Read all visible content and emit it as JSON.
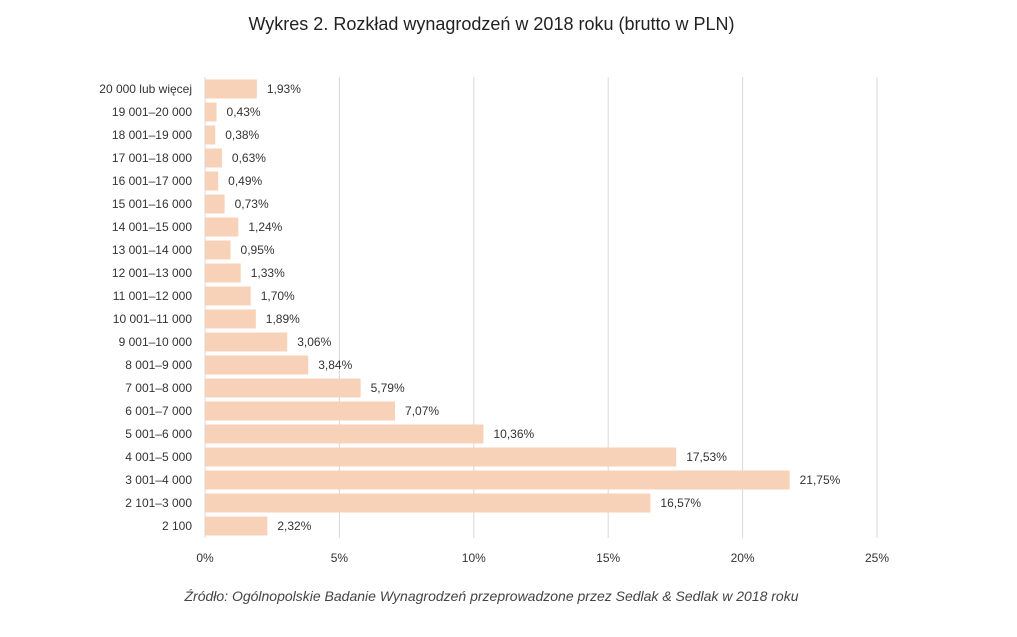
{
  "colors": {
    "bar": "#f8d2b8",
    "grid": "#d9d9d9",
    "text": "#333333",
    "background": "#ffffff"
  },
  "chart_data": {
    "type": "bar",
    "orientation": "horizontal",
    "title": "Wykres 2. Rozkład wynagrodzeń w 2018 roku (brutto w PLN)",
    "source": "Źródło: Ogólnopolskie Badanie Wynagrodzeń przeprowadzone przez Sedlak & Sedlak w 2018 roku",
    "categories": [
      "20 000 lub więcej",
      "19 001–20 000",
      "18 001–19 000",
      "17 001–18 000",
      "16 001–17 000",
      "15 001–16 000",
      "14 001–15 000",
      "13 001–14 000",
      "12 001–13 000",
      "11 001–12 000",
      "10 001–11 000",
      "9 001–10 000",
      "8 001–9 000",
      "7 001–8 000",
      "6 001–7 000",
      "5 001–6 000",
      "4 001–5 000",
      "3 001–4 000",
      "2 101–3 000",
      "2 100"
    ],
    "values": [
      1.93,
      0.43,
      0.38,
      0.63,
      0.49,
      0.73,
      1.24,
      0.95,
      1.33,
      1.7,
      1.89,
      3.06,
      3.84,
      5.79,
      7.07,
      10.36,
      17.53,
      21.75,
      16.57,
      2.32
    ],
    "value_labels": [
      "1,93%",
      "0,43%",
      "0,38%",
      "0,63%",
      "0,49%",
      "0,73%",
      "1,24%",
      "0,95%",
      "1,33%",
      "1,70%",
      "1,89%",
      "3,06%",
      "3,84%",
      "5,79%",
      "7,07%",
      "10,36%",
      "17,53%",
      "21,75%",
      "16,57%",
      "2,32%"
    ],
    "xlim": [
      0,
      25
    ],
    "x_ticks": [
      0,
      5,
      10,
      15,
      20,
      25
    ],
    "x_tick_labels": [
      "0%",
      "5%",
      "10%",
      "15%",
      "20%",
      "25%"
    ],
    "xlabel": "",
    "ylabel": "",
    "grid": "vertical",
    "legend": "none"
  }
}
